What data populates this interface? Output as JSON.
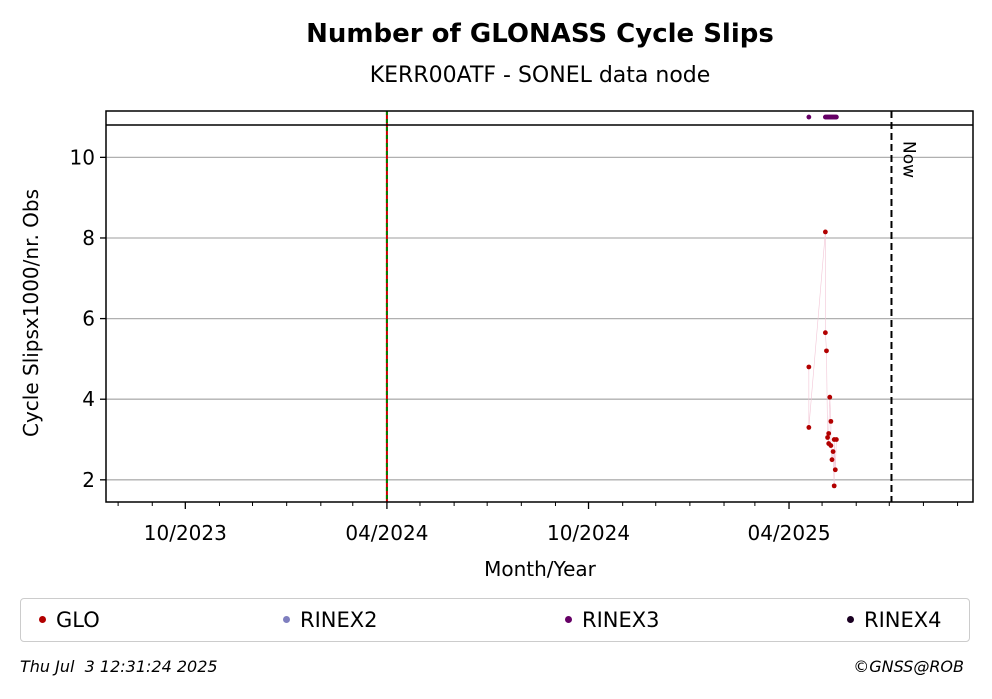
{
  "chart_data": {
    "type": "scatter",
    "title": "Number of GLONASS Cycle Slips",
    "subtitle": "KERR00ATF - SONEL data node",
    "xlabel": "Month/Year",
    "ylabel": "Cycle Slipsx1000/nr. Obs",
    "xlim": [
      "2023-07-21",
      "2025-09-15"
    ],
    "ylim": [
      1.45,
      11.15
    ],
    "upper_band_start": 10.8,
    "y_ticks": [
      2,
      4,
      6,
      8,
      10
    ],
    "x_ticks": [
      {
        "date": "2023-10-01",
        "label": "10/2023"
      },
      {
        "date": "2024-04-01",
        "label": "04/2024"
      },
      {
        "date": "2024-10-01",
        "label": "10/2024"
      },
      {
        "date": "2025-04-01",
        "label": "04/2025"
      }
    ],
    "x_minor_ticks": [
      "2023-08-01",
      "2023-09-01",
      "2023-11-01",
      "2023-12-01",
      "2024-01-01",
      "2024-02-01",
      "2024-03-01",
      "2024-05-01",
      "2024-06-01",
      "2024-07-01",
      "2024-08-01",
      "2024-09-01",
      "2024-11-01",
      "2024-12-01",
      "2025-01-01",
      "2025-02-01",
      "2025-03-01",
      "2025-05-01",
      "2025-06-01",
      "2025-07-01",
      "2025-08-01",
      "2025-09-01"
    ],
    "grid": "horizontal",
    "vertical_lines": [
      {
        "date": "2024-04-01",
        "style": "red-green-dashed"
      },
      {
        "date": "2025-07-03",
        "style": "black-dashed",
        "label": "Now"
      }
    ],
    "series": [
      {
        "name": "GLO",
        "color": "#b20000",
        "points": [
          {
            "x": "2025-04-19",
            "y": 4.8
          },
          {
            "x": "2025-04-19",
            "y": 3.3
          },
          {
            "x": "2025-05-04",
            "y": 8.15
          },
          {
            "x": "2025-05-04",
            "y": 5.65
          },
          {
            "x": "2025-05-05",
            "y": 5.2
          },
          {
            "x": "2025-05-06",
            "y": 3.05
          },
          {
            "x": "2025-05-07",
            "y": 2.9
          },
          {
            "x": "2025-05-07",
            "y": 3.15
          },
          {
            "x": "2025-05-08",
            "y": 4.05
          },
          {
            "x": "2025-05-09",
            "y": 3.45
          },
          {
            "x": "2025-05-09",
            "y": 2.85
          },
          {
            "x": "2025-05-10",
            "y": 2.5
          },
          {
            "x": "2025-05-11",
            "y": 2.7
          },
          {
            "x": "2025-05-12",
            "y": 1.85
          },
          {
            "x": "2025-05-12",
            "y": 3.0
          },
          {
            "x": "2025-05-13",
            "y": 2.25
          },
          {
            "x": "2025-05-14",
            "y": 3.0
          }
        ]
      },
      {
        "name": "RINEX2",
        "color": "#7f7fbf",
        "points": []
      },
      {
        "name": "RINEX3",
        "color": "#660066",
        "points": [
          {
            "x": "2025-04-19",
            "y": 11
          },
          {
            "x": "2025-05-04",
            "y": 11
          },
          {
            "x": "2025-05-05",
            "y": 11
          },
          {
            "x": "2025-05-06",
            "y": 11
          },
          {
            "x": "2025-05-07",
            "y": 11
          },
          {
            "x": "2025-05-08",
            "y": 11
          },
          {
            "x": "2025-05-09",
            "y": 11
          },
          {
            "x": "2025-05-10",
            "y": 11
          },
          {
            "x": "2025-05-11",
            "y": 11
          },
          {
            "x": "2025-05-12",
            "y": 11
          },
          {
            "x": "2025-05-13",
            "y": 11
          },
          {
            "x": "2025-05-14",
            "y": 11
          }
        ]
      },
      {
        "name": "RINEX4",
        "color": "#1a0022",
        "points": []
      }
    ]
  },
  "legend": [
    {
      "label": "GLO",
      "color": "#b20000"
    },
    {
      "label": "RINEX2",
      "color": "#7f7fbf"
    },
    {
      "label": "RINEX3",
      "color": "#660066"
    },
    {
      "label": "RINEX4",
      "color": "#1a0022"
    }
  ],
  "footer": {
    "timestamp": "Thu Jul  3 12:31:24 2025",
    "credit": "©GNSS@ROB"
  }
}
